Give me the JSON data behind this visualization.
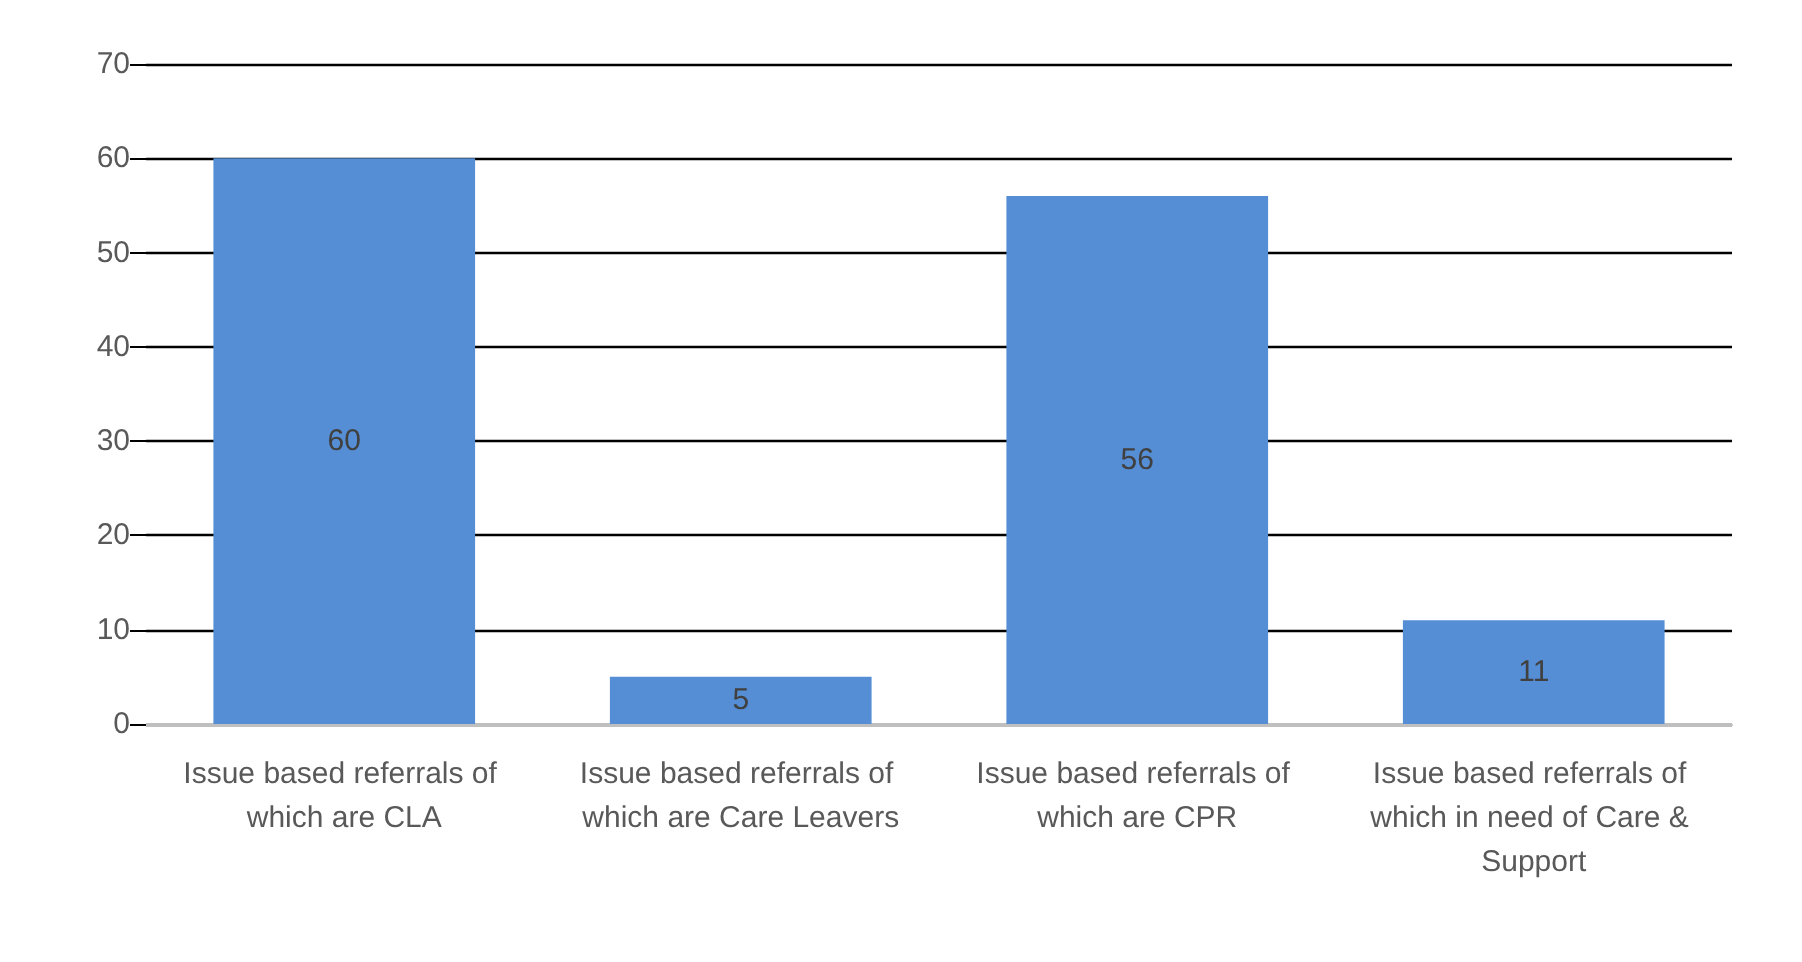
{
  "chart_data": {
    "type": "bar",
    "categories": [
      "Issue based referrals of which are CLA",
      "Issue based referrals of which are Care Leavers",
      "Issue based referrals of which are CPR",
      "Issue based referrals of which in need of Care & Support"
    ],
    "values": [
      60,
      5,
      56,
      11
    ],
    "color": "#558ed5",
    "ylim": [
      0,
      70
    ],
    "yticks": [
      0,
      10,
      20,
      30,
      40,
      50,
      60,
      70
    ],
    "grid": true,
    "data_labels": true
  }
}
